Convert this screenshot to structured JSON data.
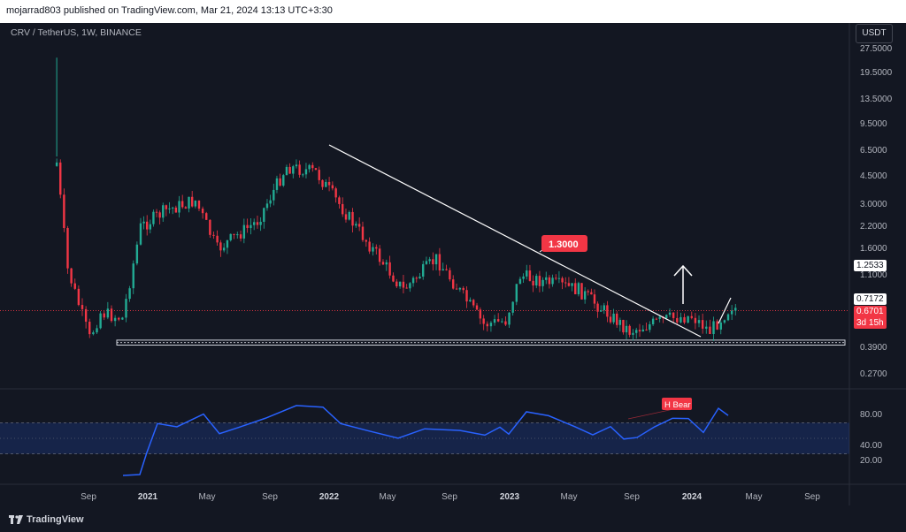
{
  "header": {
    "published": "mojarrad803 published on TradingView.com, Mar 21, 2024 13:13 UTC+3:30"
  },
  "symbol": {
    "title": "CRV / TetherUS, 1W, BINANCE"
  },
  "currency_button": "USDT",
  "price_axis": [
    "27.5000",
    "19.5000",
    "13.5000",
    "9.5000",
    "6.5000",
    "4.5000",
    "3.0000",
    "2.2000",
    "1.6000",
    "1.1000",
    "0.3900",
    "0.2700"
  ],
  "price_tags": {
    "resistance": "1.2533",
    "prev": "0.7172",
    "last": "0.6701",
    "countdown": "3d 15h"
  },
  "annotations": {
    "callout": "1.3000",
    "divergence": "H Bear"
  },
  "rsi_axis": [
    "80.00",
    "40.00",
    "20.00"
  ],
  "time_axis": [
    {
      "label": "Sep",
      "bold": false
    },
    {
      "label": "2021",
      "bold": true
    },
    {
      "label": "May",
      "bold": false
    },
    {
      "label": "Sep",
      "bold": false
    },
    {
      "label": "2022",
      "bold": true
    },
    {
      "label": "May",
      "bold": false
    },
    {
      "label": "Sep",
      "bold": false
    },
    {
      "label": "2023",
      "bold": true
    },
    {
      "label": "May",
      "bold": false
    },
    {
      "label": "Sep",
      "bold": false
    },
    {
      "label": "2024",
      "bold": true
    },
    {
      "label": "May",
      "bold": false
    },
    {
      "label": "Sep",
      "bold": false
    }
  ],
  "brand": "TradingView",
  "colors": {
    "up": "#22ab94",
    "down": "#f23645",
    "rsi": "#2962ff",
    "background": "#131722"
  },
  "chart_data": {
    "type": "candlestick",
    "title": "CRV / TetherUS, 1W, BINANCE",
    "scale": "log",
    "ylim": [
      0.22,
      32
    ],
    "xlim": [
      "2020-08-10",
      "2024-10-07"
    ],
    "approx_close_path": [
      {
        "x": "2020-08-17",
        "y": 5.5
      },
      {
        "x": "2020-09-07",
        "y": 1.2
      },
      {
        "x": "2020-10-19",
        "y": 0.45
      },
      {
        "x": "2020-11-09",
        "y": 0.65
      },
      {
        "x": "2020-12-21",
        "y": 0.6
      },
      {
        "x": "2021-01-25",
        "y": 2.2
      },
      {
        "x": "2021-03-15",
        "y": 2.8
      },
      {
        "x": "2021-05-10",
        "y": 3.2
      },
      {
        "x": "2021-06-21",
        "y": 1.6
      },
      {
        "x": "2021-09-06",
        "y": 2.4
      },
      {
        "x": "2021-11-01",
        "y": 5.2
      },
      {
        "x": "2021-12-27",
        "y": 4.8
      },
      {
        "x": "2022-03-14",
        "y": 2.2
      },
      {
        "x": "2022-06-13",
        "y": 0.9
      },
      {
        "x": "2022-08-15",
        "y": 1.4
      },
      {
        "x": "2022-11-14",
        "y": 0.55
      },
      {
        "x": "2022-12-26",
        "y": 0.58
      },
      {
        "x": "2023-01-23",
        "y": 1.1
      },
      {
        "x": "2023-05-15",
        "y": 0.9
      },
      {
        "x": "2023-08-21",
        "y": 0.5
      },
      {
        "x": "2023-11-06",
        "y": 0.6
      },
      {
        "x": "2023-12-18",
        "y": 0.62
      },
      {
        "x": "2024-01-22",
        "y": 0.5
      },
      {
        "x": "2024-03-04",
        "y": 0.7172
      },
      {
        "x": "2024-03-18",
        "y": 0.6701
      }
    ],
    "levels": {
      "support_box": [
        0.41,
        0.44
      ],
      "last_price": 0.6701
    },
    "rsi": {
      "range": [
        0,
        100
      ],
      "band": [
        30,
        70
      ]
    }
  }
}
